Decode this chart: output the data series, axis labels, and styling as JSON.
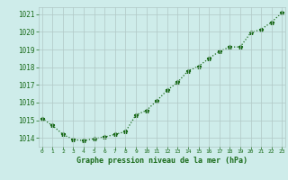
{
  "x": [
    0,
    1,
    2,
    3,
    4,
    5,
    6,
    7,
    8,
    9,
    10,
    11,
    12,
    13,
    14,
    15,
    16,
    17,
    18,
    19,
    20,
    21,
    22,
    23
  ],
  "y": [
    1015.1,
    1014.7,
    1014.2,
    1013.9,
    1013.85,
    1013.95,
    1014.05,
    1014.2,
    1014.35,
    1015.3,
    1015.55,
    1016.1,
    1016.7,
    1017.15,
    1017.8,
    1018.05,
    1018.5,
    1018.9,
    1019.15,
    1019.15,
    1019.95,
    1020.15,
    1020.55,
    1021.1
  ],
  "ylim": [
    1013.5,
    1021.4
  ],
  "xlim": [
    -0.3,
    23.3
  ],
  "yticks": [
    1014,
    1015,
    1016,
    1017,
    1018,
    1019,
    1020,
    1021
  ],
  "xticks": [
    0,
    1,
    2,
    3,
    4,
    5,
    6,
    7,
    8,
    9,
    10,
    11,
    12,
    13,
    14,
    15,
    16,
    17,
    18,
    19,
    20,
    21,
    22,
    23
  ],
  "xlabel": "Graphe pression niveau de la mer (hPa)",
  "line_color": "#1a6b1a",
  "bg_plot": "#ceecea",
  "bg_fig": "#ceecea",
  "grid_color": "#b0c8c6",
  "xlabel_color": "#1a6b1a",
  "tick_color": "#1a6b1a"
}
